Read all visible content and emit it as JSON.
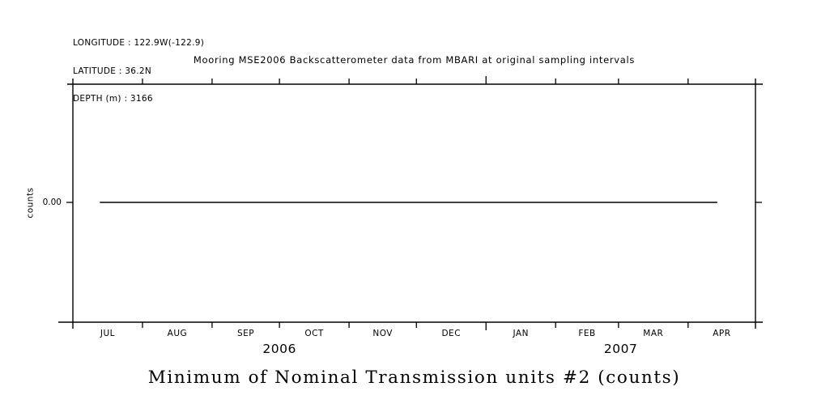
{
  "page": {
    "background": "#ffffff",
    "ink": "#000000"
  },
  "header": {
    "lines": [
      "LONGITUDE : 122.9W(-122.9)",
      "LATITUDE : 36.2N",
      "DEPTH (m) : 3166"
    ]
  },
  "chart_data": {
    "type": "line",
    "title": "Mooring MSE2006 Backscatterometer data from MBARI at original sampling intervals",
    "bottom_title": "Minimum of Nominal Transmission units #2 (counts)",
    "ylabel": "counts",
    "grid": false,
    "legend": false,
    "y_ticks": [
      {
        "label": "0.00",
        "value": 0.0
      }
    ],
    "x_axis": {
      "months": [
        {
          "label": "JUL",
          "days": 31,
          "year": "2006"
        },
        {
          "label": "AUG",
          "days": 31,
          "year": "2006"
        },
        {
          "label": "SEP",
          "days": 30,
          "year": "2006"
        },
        {
          "label": "OCT",
          "days": 31,
          "year": "2006"
        },
        {
          "label": "NOV",
          "days": 30,
          "year": "2006"
        },
        {
          "label": "DEC",
          "days": 31,
          "year": "2006"
        },
        {
          "label": "JAN",
          "days": 31,
          "year": "2007"
        },
        {
          "label": "FEB",
          "days": 28,
          "year": "2007"
        },
        {
          "label": "MAR",
          "days": 31,
          "year": "2007"
        },
        {
          "label": "APR",
          "days": 30,
          "year": "2007"
        }
      ],
      "years": [
        "2006",
        "2007"
      ],
      "range_note": "1 JUL 2006 through 30 APR 2007, ticks at month boundaries"
    },
    "series": [
      {
        "name": "Minimum of Nominal Transmission units #2",
        "color": "#000000",
        "y_value": 0.0,
        "x_start": "~12 JUL 2006",
        "x_end": "~13 APR 2007",
        "x_start_axis_day": 12,
        "x_end_axis_day": 287,
        "shape": "constant horizontal line at 0.00"
      }
    ]
  }
}
